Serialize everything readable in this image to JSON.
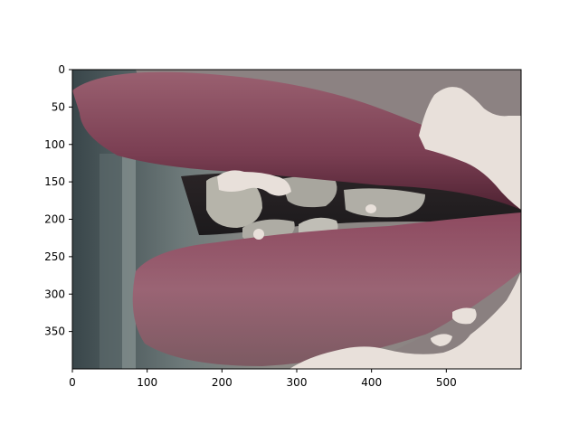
{
  "figure": {
    "image_description_name": "lips-closeup-photo",
    "colors": {
      "lip": "#8a4a5e",
      "lip_shadow": "#5c2b3c",
      "skin": "#8a7f80",
      "mask_patch": "#e6ded8",
      "teeth": "#b9b7ae",
      "background_dark": "#3e4648"
    }
  },
  "chart_data": {
    "type": "image",
    "x_ticks": [
      "0",
      "100",
      "200",
      "300",
      "400",
      "500"
    ],
    "y_ticks": [
      "0",
      "50",
      "100",
      "150",
      "200",
      "250",
      "300",
      "350"
    ],
    "x_tick_values": [
      0,
      100,
      200,
      300,
      400,
      500
    ],
    "y_tick_values": [
      0,
      50,
      100,
      150,
      200,
      250,
      300,
      350
    ],
    "xlim": [
      0,
      600
    ],
    "ylim": [
      400,
      0
    ],
    "grid": false
  }
}
